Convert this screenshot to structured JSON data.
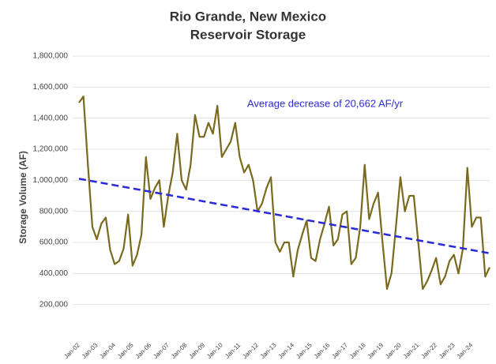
{
  "chart_data": {
    "type": "line",
    "title": "Rio Grande, New Mexico",
    "subtitle": "Reservoir Storage",
    "ylabel": "Storage Volume (AF)",
    "annotation": "Average decrease of 20,662 AF/yr",
    "categories": [
      "Jan-02",
      null,
      null,
      null,
      "Jan-03",
      null,
      null,
      null,
      "Jan-04",
      null,
      null,
      null,
      "Jan-05",
      null,
      null,
      null,
      "Jan-06",
      null,
      null,
      null,
      "Jan-07",
      null,
      null,
      null,
      "Jan-08",
      null,
      null,
      null,
      "Jan-09",
      null,
      null,
      null,
      "Jan-10",
      null,
      null,
      null,
      "Jan-11",
      null,
      null,
      null,
      "Jan-12",
      null,
      null,
      null,
      "Jan-13",
      null,
      null,
      null,
      "Jan-14",
      null,
      null,
      null,
      "Jan-15",
      null,
      null,
      null,
      "Jan-16",
      null,
      null,
      null,
      "Jan-17",
      null,
      null,
      null,
      "Jan-18",
      null,
      null,
      null,
      "Jan-19",
      null,
      null,
      null,
      "Jan-20",
      null,
      null,
      null,
      "Jan-21",
      null,
      null,
      null,
      "Jan-22",
      null,
      null,
      null,
      "Jan-23",
      null,
      null,
      null,
      "Jan-24",
      null,
      null,
      null,
      null
    ],
    "series": [
      {
        "name": "Storage Volume",
        "color": "#7a6a1e",
        "values": [
          1500000,
          1540000,
          1100000,
          700000,
          620000,
          720000,
          760000,
          550000,
          460000,
          480000,
          560000,
          780000,
          450000,
          520000,
          650000,
          1150000,
          880000,
          950000,
          1000000,
          700000,
          900000,
          1050000,
          1300000,
          1000000,
          940000,
          1100000,
          1420000,
          1280000,
          1280000,
          1370000,
          1300000,
          1480000,
          1150000,
          1200000,
          1250000,
          1370000,
          1150000,
          1050000,
          1100000,
          1000000,
          800000,
          850000,
          950000,
          1020000,
          600000,
          540000,
          600000,
          600000,
          380000,
          550000,
          650000,
          740000,
          500000,
          480000,
          620000,
          720000,
          830000,
          580000,
          620000,
          780000,
          800000,
          460000,
          500000,
          700000,
          1100000,
          750000,
          850000,
          920000,
          600000,
          300000,
          400000,
          700000,
          1020000,
          800000,
          900000,
          900000,
          600000,
          300000,
          350000,
          420000,
          500000,
          330000,
          380000,
          480000,
          520000,
          400000,
          560000,
          1080000,
          700000,
          760000,
          760000,
          380000,
          440000
        ]
      }
    ],
    "trend": {
      "color": "#2b2bd6",
      "dashed": true,
      "values": [
        1010000,
        530000
      ]
    },
    "ylim": [
      0,
      1800000
    ],
    "yticks": [
      {
        "value": 200000,
        "label": "200,000"
      },
      {
        "value": 400000,
        "label": "400,000"
      },
      {
        "value": 600000,
        "label": "600,000"
      },
      {
        "value": 800000,
        "label": "800,000"
      },
      {
        "value": 1000000,
        "label": "1,000,000"
      },
      {
        "value": 1200000,
        "label": "1,200,000"
      },
      {
        "value": 1400000,
        "label": "1,400,000"
      },
      {
        "value": 1600000,
        "label": "1,600,000"
      },
      {
        "value": 1800000,
        "label": "1,800,000"
      }
    ],
    "grid": true
  }
}
